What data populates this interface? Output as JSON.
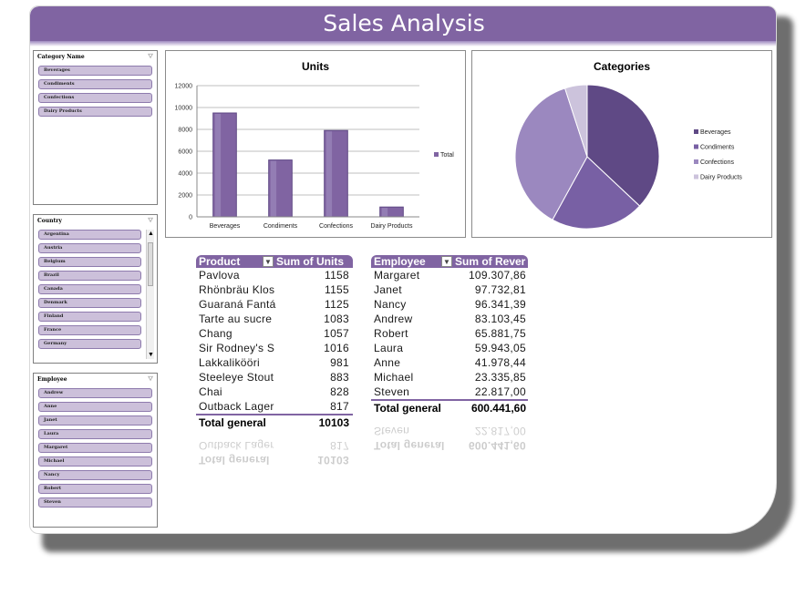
{
  "title": "Sales Analysis",
  "slicers": {
    "category": {
      "header": "Category Name",
      "items": [
        "Beverages",
        "Condiments",
        "Confections",
        "Dairy Products"
      ]
    },
    "country": {
      "header": "Country",
      "items": [
        "Argentina",
        "Austria",
        "Belgium",
        "Brazil",
        "Canada",
        "Denmark",
        "Finland",
        "France",
        "Germany"
      ]
    },
    "employee": {
      "header": "Employee",
      "items": [
        "Andrew",
        "Anne",
        "Janet",
        "Laura",
        "Margaret",
        "Michael",
        "Nancy",
        "Robert",
        "Steven"
      ]
    }
  },
  "chart_data": [
    {
      "type": "bar",
      "title": "Units",
      "categories": [
        "Beverages",
        "Condiments",
        "Confections",
        "Dairy Products"
      ],
      "series": [
        {
          "name": "Total",
          "values": [
            9500,
            5200,
            7900,
            900
          ]
        }
      ],
      "ylim": [
        0,
        12000
      ],
      "yticks": [
        "0",
        "2000",
        "4000",
        "6000",
        "8000",
        "10000",
        "12000"
      ],
      "legend": "right",
      "color": "#8064a2"
    },
    {
      "type": "pie",
      "title": "Categories",
      "categories": [
        "Beverages",
        "Condiments",
        "Confections",
        "Dairy Products"
      ],
      "values": [
        37,
        21,
        37,
        5
      ],
      "colors": [
        "#5f4985",
        "#7860a4",
        "#9b88bf",
        "#ccc3dc"
      ],
      "legend": "right"
    }
  ],
  "pivot_units": {
    "col1": "Product",
    "col2": "Sum of Units",
    "rows": [
      [
        "Pavlova",
        "1158"
      ],
      [
        "Rhönbräu Klos",
        "1155"
      ],
      [
        "Guaraná Fantá",
        "1125"
      ],
      [
        "Tarte au sucre",
        "1083"
      ],
      [
        "Chang",
        "1057"
      ],
      [
        "Sir Rodney's S",
        "1016"
      ],
      [
        "Lakkalikööri",
        "981"
      ],
      [
        "Steeleye Stout",
        "883"
      ],
      [
        "Chai",
        "828"
      ],
      [
        "Outback Lager",
        "817"
      ]
    ],
    "total_label": "Total general",
    "total_value": "10103"
  },
  "pivot_revenue": {
    "col1": "Employee",
    "col2": "Sum of Rever",
    "rows": [
      [
        "Margaret",
        "109.307,86"
      ],
      [
        "Janet",
        "97.732,81"
      ],
      [
        "Nancy",
        "96.341,39"
      ],
      [
        "Andrew",
        "83.103,45"
      ],
      [
        "Robert",
        "65.881,75"
      ],
      [
        "Laura",
        "59.943,05"
      ],
      [
        "Anne",
        "41.978,44"
      ],
      [
        "Michael",
        "23.335,85"
      ],
      [
        "Steven",
        "22.817,00"
      ]
    ],
    "total_label": "Total general",
    "total_value": "600.441,60"
  }
}
